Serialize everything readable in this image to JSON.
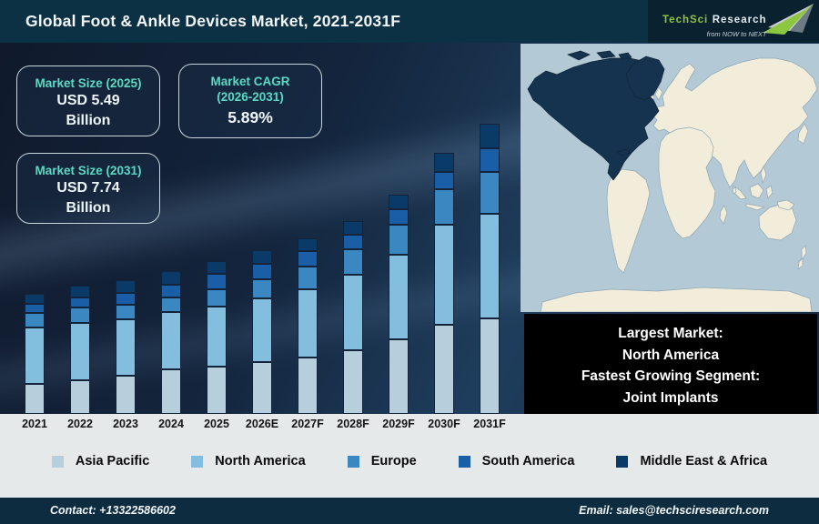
{
  "title_bar": {
    "title": "Global Foot & Ankle Devices Market, 2021-2031F"
  },
  "logo": {
    "brand_primary": "TechSci",
    "brand_secondary": "Research",
    "tagline": "from NOW to NEXT"
  },
  "info_boxes": {
    "size_2025": {
      "label": "Market Size (2025)",
      "value_line1": "USD 5.49",
      "value_line2": "Billion"
    },
    "cagr": {
      "label_line1": "Market CAGR",
      "label_line2": "(2026-2031)",
      "value": "5.89%"
    },
    "size_2031": {
      "label": "Market Size (2031)",
      "value_line1": "USD 7.74",
      "value_line2": "Billion"
    }
  },
  "callout": {
    "lines": [
      "Largest Market:",
      "North America",
      "Fastest Growing Segment:",
      "Joint Implants"
    ]
  },
  "footer": {
    "contact": "Contact: +13322586602",
    "email": "Email: sales@techsciresearch.com"
  },
  "colors": {
    "title_bar_bg": "#0d3144",
    "logo_bg": "#0a2130",
    "logo_green": "#8dc63f",
    "background_dark": "#13243c",
    "teal_label": "#5cd9c4",
    "band_bg": "#e5e9ea",
    "footer_bg": "#0e2c3f",
    "callout_bg": "#000000",
    "map_ocean": "#b4c9d6",
    "map_land": "#f1edda",
    "map_highlight": "#15334e"
  },
  "chart_data": {
    "type": "bar",
    "subtype": "stacked-vertical",
    "title": "Global Foot & Ankle Devices Market, 2021-2031F",
    "categories": [
      "2021",
      "2022",
      "2023",
      "2024",
      "2025",
      "2026E",
      "2027F",
      "2028F",
      "2029F",
      "2030F",
      "2031F"
    ],
    "series": [
      {
        "name": "Asia Pacific",
        "color": "#b7cfdc",
        "values": [
          33,
          37,
          42,
          49,
          52,
          57,
          62,
          70,
          82,
          98,
          105
        ]
      },
      {
        "name": "North America",
        "color": "#84bedf",
        "values": [
          62,
          63,
          62,
          63,
          66,
          70,
          75,
          83,
          93,
          110,
          115
        ]
      },
      {
        "name": "Europe",
        "color": "#3a87c2",
        "values": [
          16,
          17,
          16,
          16,
          19,
          21,
          25,
          28,
          33,
          39,
          46
        ]
      },
      {
        "name": "South America",
        "color": "#1b5ea8",
        "values": [
          10,
          11,
          13,
          14,
          17,
          17,
          17,
          16,
          17,
          19,
          26
        ]
      },
      {
        "name": "Middle East & Africa",
        "color": "#0a3a68",
        "values": [
          11,
          13,
          14,
          15,
          14,
          15,
          14,
          15,
          16,
          21,
          27
        ]
      }
    ],
    "value_axis": "none (illustrative heights, px)",
    "known_points": {
      "2025_total_usd_billion": 5.49,
      "2031_total_usd_billion": 7.74,
      "cagr_2026_2031_percent": 5.89
    },
    "legend_position": "bottom",
    "grid": false
  }
}
